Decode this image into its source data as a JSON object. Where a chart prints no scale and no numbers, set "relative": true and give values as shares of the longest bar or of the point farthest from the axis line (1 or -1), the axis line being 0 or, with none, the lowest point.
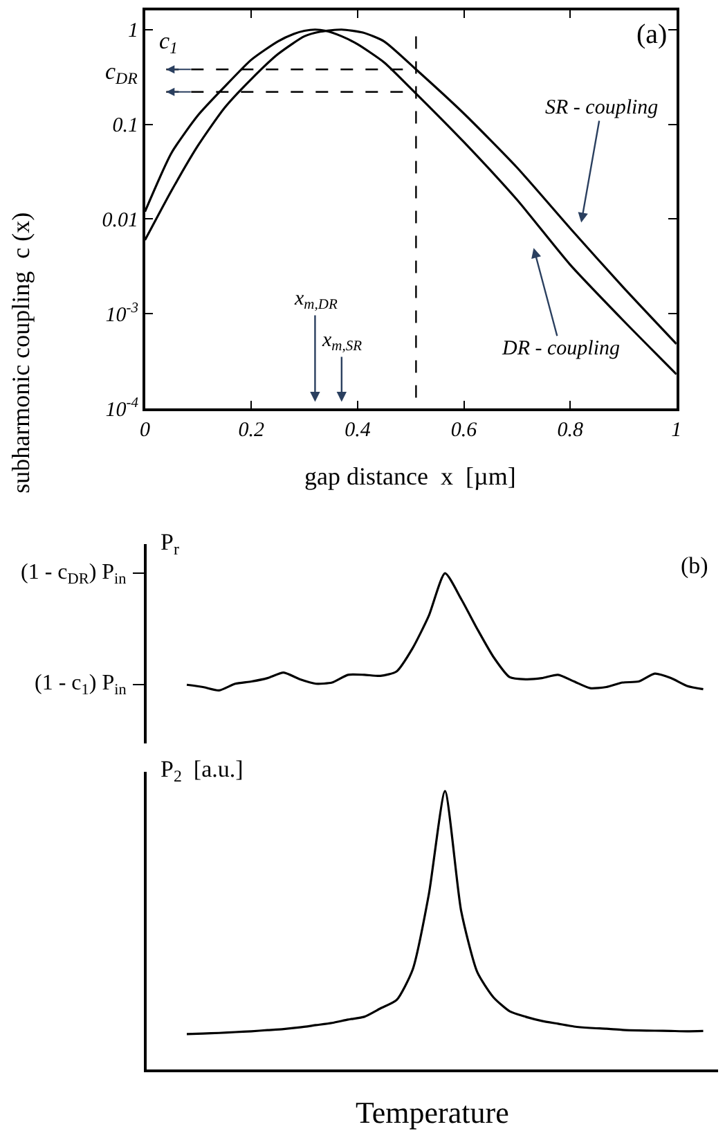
{
  "chart_data": [
    {
      "type": "line",
      "xlabel": "gap distance  x  [µm]",
      "ylabel": "subharmonic coupling  c (x)",
      "log": "y",
      "xlim": [
        0,
        1
      ],
      "xticks": [
        0,
        0.2,
        0.4,
        0.6,
        0.8,
        1
      ],
      "ylim": [
        0.0001,
        1.6
      ],
      "yticks": [
        {
          "value": 0.0001,
          "label": "10$^{-4}$"
        },
        {
          "value": 0.001,
          "label": "10$^{-3}$"
        },
        0.01,
        0.1,
        1
      ],
      "series": [
        {
          "color": "#000000",
          "x": [
            0,
            0.05,
            0.1,
            0.15,
            0.2,
            0.25,
            0.28,
            0.3,
            0.32,
            0.34,
            0.37,
            0.4,
            0.45,
            0.5,
            0.6,
            0.7,
            0.8,
            0.9,
            1
          ],
          "values": [
            0.012,
            0.05,
            0.125,
            0.25,
            0.48,
            0.75,
            0.9,
            0.97,
            1,
            0.97,
            0.85,
            0.7,
            0.45,
            0.24,
            0.065,
            0.016,
            0.0033,
            0.00085,
            0.00023
          ]
        },
        {
          "color": "#000000",
          "x": [
            0,
            0.05,
            0.1,
            0.15,
            0.2,
            0.25,
            0.3,
            0.33,
            0.37,
            0.41,
            0.45,
            0.51,
            0.6,
            0.7,
            0.8,
            0.9,
            1
          ],
          "values": [
            0.006,
            0.02,
            0.06,
            0.15,
            0.3,
            0.55,
            0.85,
            0.95,
            1,
            0.93,
            0.75,
            0.38,
            0.13,
            0.035,
            0.008,
            0.0019,
            0.00048
          ]
        }
      ],
      "ref_lines": [
        {
          "axis": "y",
          "value": 0.38,
          "label": "c$_{1}$",
          "line_style": "dashed"
        },
        {
          "axis": "y",
          "value": 0.22,
          "label": "c$_{DR}$",
          "line_style": "dashed"
        },
        {
          "axis": "x",
          "value": 0.51,
          "line_style": "dashed"
        }
      ],
      "annotations": [
        "(a)",
        "x$_{m,DR}$",
        "x$_{m,SR}$",
        "SR - coupling",
        "DR - coupling"
      ]
    },
    {
      "type": "line",
      "relative": true,
      "ylabel": "P$_{r}$",
      "categories": [
        null,
        null,
        null,
        null,
        null,
        null,
        null,
        null,
        null,
        null,
        null,
        null,
        null,
        null,
        null,
        null,
        null,
        null,
        null,
        null,
        null,
        null,
        null,
        null,
        null,
        null,
        null,
        null,
        null,
        null,
        null,
        null,
        null
      ],
      "series": [
        {
          "color": "#000000",
          "values": [
            0.048,
            0.029,
            0,
            0.057,
            0.076,
            0.105,
            0.152,
            0.095,
            0.057,
            0.067,
            0.133,
            0.133,
            0.124,
            0.162,
            0.362,
            0.638,
            1,
            0.781,
            0.524,
            0.286,
            0.114,
            0.095,
            0.105,
            0.133,
            0.076,
            0.019,
            0.029,
            0.067,
            0.076,
            0.143,
            0.105,
            0.038,
            0.01
          ]
        }
      ],
      "annotations": [
        "(b)",
        "(1 - c$_{1}$) P$_{in}$",
        "(1 - c$_{DR}$) P$_{in}$"
      ]
    },
    {
      "type": "line",
      "relative": true,
      "ylabel": "P$_{2}$  [a.u.]",
      "xlabel": "Temperature",
      "categories": [
        null,
        null,
        null,
        null,
        null,
        null,
        null,
        null,
        null,
        null,
        null,
        null,
        null,
        null,
        null,
        null,
        null,
        null,
        null,
        null,
        null,
        null,
        null,
        null,
        null,
        null,
        null,
        null,
        null,
        null,
        null,
        null,
        null
      ],
      "series": [
        {
          "color": "#000000",
          "values": [
            0.128,
            0.13,
            0.132,
            0.135,
            0.138,
            0.142,
            0.146,
            0.152,
            0.16,
            0.168,
            0.18,
            0.19,
            0.22,
            0.25,
            0.36,
            0.63,
            1.0,
            0.57,
            0.35,
            0.26,
            0.21,
            0.19,
            0.175,
            0.165,
            0.155,
            0.15,
            0.147,
            0.143,
            0.141,
            0.14,
            0.139,
            0.138,
            0.139
          ]
        }
      ]
    }
  ]
}
